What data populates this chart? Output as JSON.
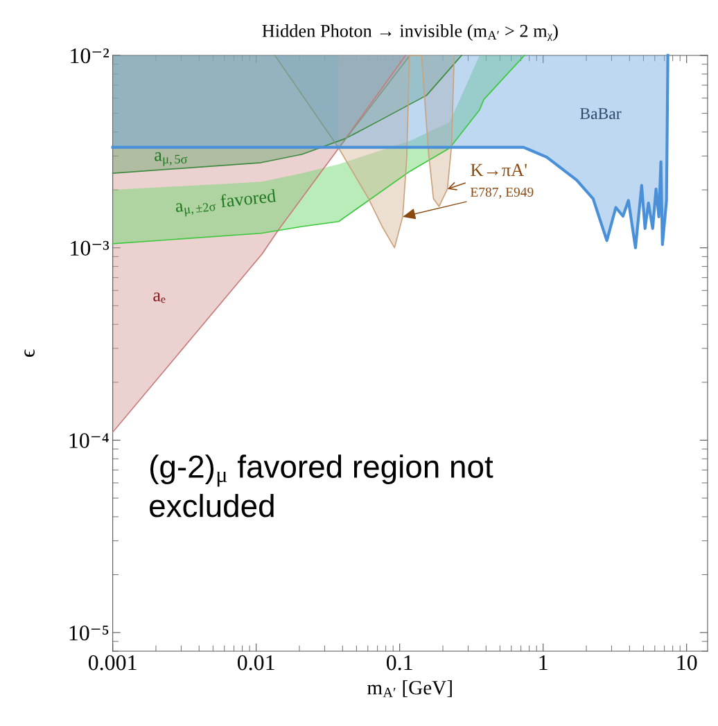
{
  "chart_data": {
    "type": "line",
    "title": "Hidden Photon → invisible (m$_{A′}$ > 2 mᵪ)",
    "xlabel": "m$_{A′}$ [GeV]",
    "ylabel": "ϵ",
    "log": "xy",
    "grid": false,
    "xlim": [
      0.001,
      14
    ],
    "ylim": [
      8e-06,
      0.01
    ],
    "xticks": [
      0.001,
      0.01,
      0.1,
      1,
      10
    ],
    "yticks": [
      {
        "value": 1e-05,
        "label": "10⁻⁵"
      },
      {
        "value": 0.0001,
        "label": "10⁻⁴"
      },
      {
        "value": 0.001,
        "label": "10⁻³"
      },
      {
        "value": 0.01,
        "label": "10⁻²"
      }
    ],
    "series": [
      {
        "color": "#c97b7b",
        "x": [
          0.001,
          0.011,
          0.0143,
          0.0376,
          0.11
        ],
        "values": [
          0.00011,
          0.00093,
          0.00124,
          0.0033,
          0.01
        ],
        "lower": [
          0.00011,
          0.00093,
          0.00124,
          0.0033,
          0.01
        ],
        "upper": [
          0.01,
          0.01,
          0.01,
          0.01,
          0.01
        ]
      },
      {
        "color": "#3e8a3e",
        "x": [
          0.001,
          0.0108,
          0.0209,
          0.042,
          0.073,
          0.154,
          0.27
        ],
        "values": [
          0.00244,
          0.00277,
          0.00306,
          0.0037,
          0.0046,
          0.0062,
          0.01
        ],
        "lower": [
          0.00244,
          0.00277,
          0.00306,
          0.0037,
          0.0046,
          0.0062,
          0.01
        ],
        "upper": [
          0.01,
          0.01,
          0.01,
          0.01,
          0.01,
          0.01,
          0.01
        ]
      },
      {
        "color": "#3cc83c",
        "x": [
          0.001,
          0.0108,
          0.0209,
          0.0376,
          0.118,
          0.223,
          0.36,
          0.386,
          0.74
        ],
        "values": [
          0.00105,
          0.00119,
          0.00129,
          0.00137,
          0.0025,
          0.0033,
          0.0052,
          0.0059,
          0.01
        ],
        "lower": [
          0.00105,
          0.00119,
          0.00129,
          0.00137,
          0.0025,
          0.0033,
          0.0052,
          0.0059,
          0.01
        ],
        "upper": [
          0.002,
          0.0022,
          0.00244,
          0.00272,
          0.0036,
          0.0045,
          0.01,
          0.01,
          0.01
        ]
      },
      {
        "color": "#7f9a88",
        "x": [
          0.0135,
          0.0376,
          0.118
        ],
        "values": [
          0.01,
          0.0033,
          0.01
        ],
        "lower": [
          0.01,
          0.0033,
          0.01
        ],
        "upper": [
          0.01,
          0.01,
          0.01
        ]
      },
      {
        "color": "#c9a37c",
        "x": [
          0.0376,
          0.0607,
          0.0755,
          0.092,
          0.105,
          0.112,
          0.117,
          0.142,
          0.159,
          0.172,
          0.188,
          0.215,
          0.23,
          0.24
        ],
        "values": [
          0.0033,
          0.0018,
          0.00129,
          0.001,
          0.00145,
          0.00295,
          0.01,
          0.01,
          0.0031,
          0.0018,
          0.00164,
          0.00202,
          0.0034,
          0.01
        ],
        "lower": [
          0.0033,
          0.0018,
          0.00129,
          0.001,
          0.00145,
          0.00295,
          0.01,
          0.01,
          0.0031,
          0.0018,
          0.00164,
          0.00202,
          0.0034,
          0.01
        ],
        "upper": [
          0.01,
          0.01,
          0.01,
          0.01,
          0.01,
          0.01,
          0.01,
          0.01,
          0.01,
          0.01,
          0.01,
          0.01,
          0.01,
          0.01
        ]
      },
      {
        "color": "#4a90d9",
        "line_style": "solid",
        "x": [
          0.001,
          0.73,
          1.06,
          1.71,
          2.23,
          2.78,
          3.21,
          3.6,
          3.93,
          4.4,
          4.86,
          5.13,
          5.42,
          5.8,
          6.12,
          6.4,
          6.62,
          6.78,
          7.24,
          7.4
        ],
        "values": [
          0.00333,
          0.00333,
          0.00296,
          0.00225,
          0.0018,
          0.00109,
          0.00162,
          0.00146,
          0.00176,
          0.001,
          0.00211,
          0.00126,
          0.00171,
          0.00126,
          0.00202,
          0.00145,
          0.0028,
          0.00104,
          0.00176,
          0.01
        ],
        "lower": [
          0.00333,
          0.00333,
          0.00296,
          0.00225,
          0.0018,
          0.00109,
          0.00162,
          0.00146,
          0.00176,
          0.001,
          0.00211,
          0.00126,
          0.00171,
          0.00126,
          0.00202,
          0.00145,
          0.0028,
          0.00104,
          0.00176,
          0.01
        ],
        "upper": [
          0.01,
          0.01,
          0.01,
          0.01,
          0.01,
          0.01,
          0.01,
          0.01,
          0.01,
          0.01,
          0.01,
          0.01,
          0.01,
          0.01,
          0.01,
          0.01,
          0.01,
          0.01,
          0.01,
          0.01
        ]
      }
    ],
    "annotations": [
      "BaBar",
      "a$_{μ,5σ}$",
      "a$_{μ,±2σ}$ favored",
      "aₑ",
      {
        "text": "K→πA'",
        "x": 0.215,
        "y": 0.00202
      },
      {
        "text": "E787, E949",
        "x": 0.105,
        "y": 0.00145
      },
      "(g-2)$_{μ}$ favored region not\nexcluded"
    ]
  }
}
